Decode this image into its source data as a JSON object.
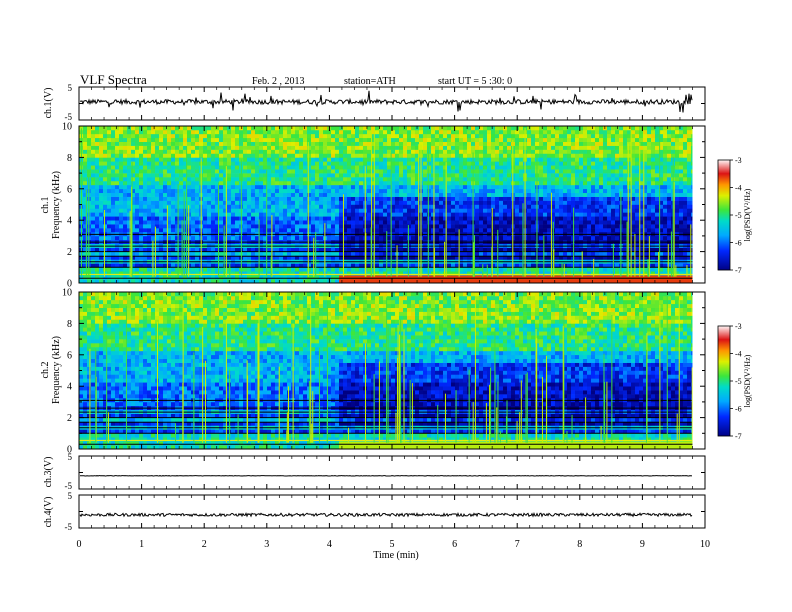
{
  "header": {
    "title": "VLF  Spectra",
    "date": "Feb. 2  , 2013",
    "station": "station=ATH",
    "start": "start  UT  =   5  :30: 0"
  },
  "chart_data": [
    {
      "type": "line",
      "ylabel": "ch.1(V)",
      "ylim": [
        -5,
        5
      ],
      "yticks": [
        "5",
        "-5"
      ],
      "xlabel": "Time  (min)",
      "xlim": [
        0,
        10
      ],
      "data_end_min": 9.8,
      "mean_level_V": 0.5
    },
    {
      "type": "heatmap",
      "ylabel_top": "ch.1",
      "ylabel": "Frequency  (kHz)",
      "ylim": [
        0,
        10
      ],
      "yticks": [
        "0",
        "2",
        "4",
        "6",
        "8",
        "10"
      ],
      "xlim": [
        0,
        10
      ],
      "data_end_min": 9.8,
      "transition_min": 4.1,
      "colorbar": {
        "label": "log(PSD(V²/Hz)",
        "ticks": [
          "-3",
          "-4",
          "-5",
          "-6",
          "-7"
        ],
        "range": [
          -7,
          -3
        ]
      }
    },
    {
      "type": "heatmap",
      "ylabel_top": "ch.2",
      "ylabel": "Frequency  (kHz)",
      "ylim": [
        0,
        10
      ],
      "yticks": [
        "0",
        "2",
        "4",
        "6",
        "8",
        "10"
      ],
      "xlim": [
        0,
        10
      ],
      "data_end_min": 9.8,
      "transition_min": 4.1,
      "colorbar": {
        "label": "log(PSD(V²/Hz)",
        "ticks": [
          "-3",
          "-4",
          "-5",
          "-6",
          "-7"
        ],
        "range": [
          -7,
          -3
        ]
      }
    },
    {
      "type": "line",
      "ylabel": "ch.3(V)",
      "ylim": [
        -5,
        5
      ],
      "yticks": [
        "5",
        "-5"
      ],
      "xlim": [
        0,
        10
      ],
      "data_end_min": 9.8,
      "mean_level_V": -1
    },
    {
      "type": "line",
      "ylabel": "ch.4(V)",
      "ylim": [
        -5,
        5
      ],
      "yticks": [
        "5",
        "-5"
      ],
      "xlim": [
        0,
        10
      ],
      "data_end_min": 9.8,
      "mean_level_V": -1
    }
  ],
  "xaxis": {
    "label": "Time  (min)",
    "ticks": [
      "0",
      "1",
      "2",
      "3",
      "4",
      "5",
      "6",
      "7",
      "8",
      "9",
      "10"
    ]
  }
}
